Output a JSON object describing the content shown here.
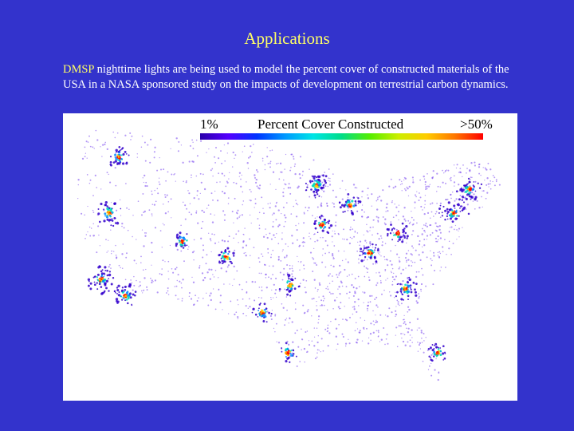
{
  "slide": {
    "title": "Applications",
    "body_highlight": "DMSP",
    "body_rest": " nighttime lights are being used to model the percent cover of constructed materials of the USA in a NASA sponsored study on the impacts of development on terrestrial carbon dynamics."
  },
  "legend": {
    "min_label": "1%",
    "title": "Percent Cover Constructed",
    "max_label": ">50%",
    "colors": [
      "#2a00aa",
      "#5500ff",
      "#0033ff",
      "#0099ff",
      "#00e5e5",
      "#00dd88",
      "#55ee00",
      "#ccee00",
      "#ffcc00",
      "#ff7700",
      "#ff0000"
    ]
  },
  "map": {
    "background": "#ffffff",
    "density_colors": [
      "#7744ee",
      "#3300cc",
      "#0088ff",
      "#00ddbb",
      "#ffcc00",
      "#ff0000"
    ]
  }
}
